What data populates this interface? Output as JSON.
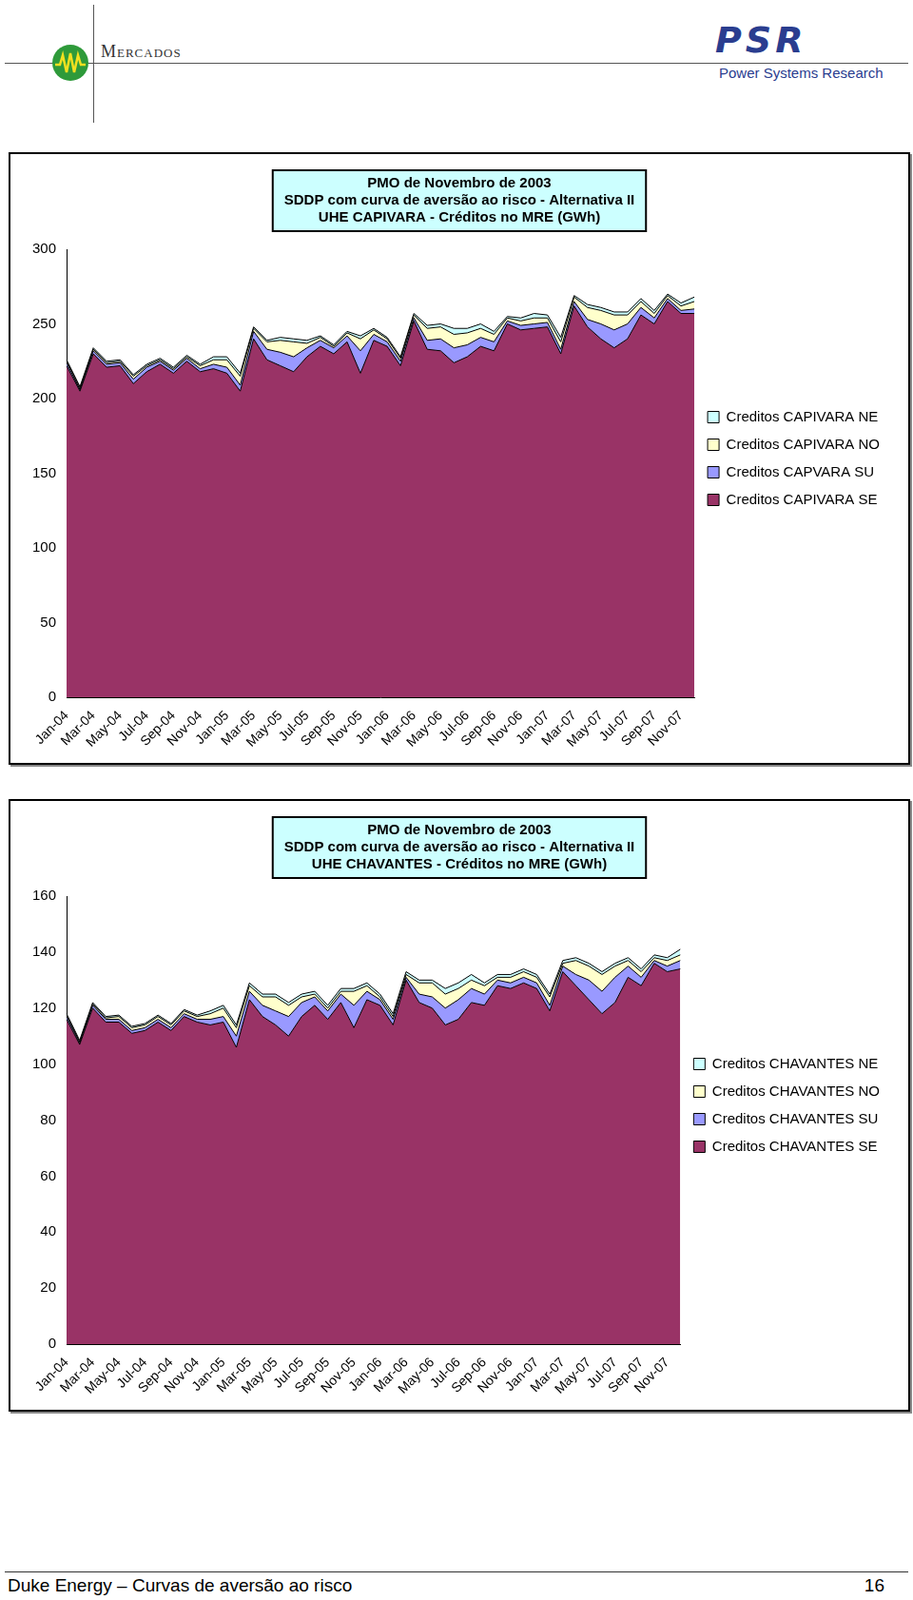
{
  "header": {
    "left": "Mercados",
    "logo": "PSR",
    "right": "Power Systems Research"
  },
  "footer": {
    "left": "Duke Energy – Curvas de aversão ao risco",
    "page": "16"
  },
  "chart_data": [
    {
      "type": "area",
      "stacked": true,
      "grid": false,
      "legend": "right",
      "title": [
        "PMO de Novembro de 2003",
        "SDDP com curva de aversão ao risco - Alternativa II",
        "UHE CAPIVARA - Créditos no MRE (GWh)"
      ],
      "categories": [
        "Jan-04",
        null,
        "Mar-04",
        null,
        "May-04",
        null,
        "Jul-04",
        null,
        "Sep-04",
        null,
        "Nov-04",
        null,
        "Jan-05",
        null,
        "Mar-05",
        null,
        "May-05",
        null,
        "Jul-05",
        null,
        "Sep-05",
        null,
        "Nov-05",
        null,
        "Jan-06",
        null,
        "Mar-06",
        null,
        "May-06",
        null,
        "Jul-06",
        null,
        "Sep-06",
        null,
        "Nov-06",
        null,
        "Jan-07",
        null,
        "Mar-07",
        null,
        "May-07",
        null,
        "Jul-07",
        null,
        "Sep-07",
        null,
        "Nov-07",
        null
      ],
      "series": [
        {
          "name": "Creditos CAPIVARA SE",
          "color": "#993366",
          "values": [
            222,
            205,
            230,
            221,
            222,
            210,
            218,
            223,
            217,
            225,
            218,
            220,
            217,
            205,
            240,
            226,
            222,
            218,
            228,
            235,
            230,
            238,
            217,
            239,
            235,
            222,
            252,
            233,
            232,
            224,
            228,
            235,
            232,
            250,
            246,
            247,
            248,
            230,
            262,
            248,
            240,
            234,
            240,
            256,
            250,
            265,
            257,
            257
          ]
        },
        {
          "name": "Creditos CAPVARA SU",
          "color": "#9999FF",
          "values": [
            2,
            1,
            2,
            2,
            2,
            3,
            3,
            2,
            2,
            2,
            2,
            3,
            4,
            4,
            5,
            7,
            9,
            10,
            6,
            4,
            4,
            4,
            15,
            4,
            3,
            3,
            2,
            6,
            8,
            10,
            8,
            6,
            6,
            2,
            3,
            3,
            3,
            3,
            3,
            5,
            10,
            12,
            10,
            5,
            4,
            2,
            2,
            3
          ]
        },
        {
          "name": "Creditos CAPIVARA NO",
          "color": "#FFFFCC",
          "values": [
            1,
            1,
            1,
            1,
            1,
            2,
            1,
            1,
            1,
            1,
            2,
            3,
            5,
            6,
            2,
            5,
            8,
            10,
            3,
            2,
            1,
            2,
            8,
            3,
            2,
            2,
            2,
            8,
            8,
            9,
            8,
            6,
            5,
            2,
            3,
            4,
            3,
            5,
            3,
            8,
            9,
            10,
            6,
            4,
            3,
            2,
            3,
            5
          ]
        },
        {
          "name": "Creditos CAPIVARA NE",
          "color": "#CCFFFF",
          "values": [
            1,
            1,
            1,
            1,
            1,
            1,
            1,
            1,
            1,
            1,
            1,
            2,
            2,
            2,
            1,
            1,
            2,
            2,
            2,
            1,
            1,
            1,
            2,
            1,
            1,
            1,
            1,
            2,
            2,
            4,
            3,
            3,
            2,
            1,
            2,
            3,
            2,
            3,
            1,
            2,
            2,
            2,
            2,
            2,
            2,
            1,
            2,
            3
          ]
        }
      ],
      "ylim": [
        0,
        300
      ],
      "yticks": [
        0,
        50,
        100,
        150,
        200,
        250,
        300
      ]
    },
    {
      "type": "area",
      "stacked": true,
      "grid": false,
      "legend": "right",
      "title": [
        "PMO de Novembro de 2003",
        "SDDP com curva de aversão ao risco - Alternativa II",
        "UHE CHAVANTES - Créditos no MRE (GWh)"
      ],
      "categories": [
        "Jan-04",
        null,
        "Mar-04",
        null,
        "May-04",
        null,
        "Jul-04",
        null,
        "Sep-04",
        null,
        "Nov-04",
        null,
        "Jan-05",
        null,
        "Mar-05",
        null,
        "May-05",
        null,
        "Jul-05",
        null,
        "Sep-05",
        null,
        "Nov-05",
        null,
        "Jan-06",
        null,
        "Mar-06",
        null,
        "May-06",
        null,
        "Jul-06",
        null,
        "Sep-06",
        null,
        "Nov-06",
        null,
        "Jan-07",
        null,
        "Mar-07",
        null,
        "May-07",
        null,
        "Jul-07",
        null,
        "Sep-07",
        null,
        "Nov-07",
        null
      ],
      "series": [
        {
          "name": "Creditos CHAVANTES SE",
          "color": "#993366",
          "values": [
            116,
            107,
            120,
            115,
            115,
            111,
            112,
            115,
            112,
            117,
            115,
            114,
            115,
            106,
            123,
            117,
            114,
            110,
            117,
            121,
            116,
            122,
            113,
            123,
            121,
            114,
            130,
            122,
            120,
            114,
            116,
            122,
            121,
            128,
            127,
            129,
            127,
            119,
            133,
            128,
            123,
            118,
            122,
            131,
            128,
            136,
            133,
            134
          ]
        },
        {
          "name": "Creditos CHAVANTES SU",
          "color": "#9999FF",
          "values": [
            1,
            0.5,
            1,
            1,
            1,
            1,
            1,
            1,
            1,
            1,
            1,
            2,
            2,
            4,
            3,
            4,
            5,
            7,
            5,
            3,
            3,
            3,
            8,
            3,
            2,
            2,
            1,
            3,
            4,
            6,
            7,
            5,
            4,
            2,
            2,
            2,
            2,
            2,
            2,
            4,
            7,
            8,
            9,
            4,
            3,
            1,
            2,
            3
          ]
        },
        {
          "name": "Creditos CHAVANTES NO",
          "color": "#FFFFCC",
          "values": [
            0.5,
            0.5,
            0.5,
            0.5,
            1,
            1,
            1,
            1,
            1,
            1,
            1,
            2,
            3,
            3,
            2,
            3,
            5,
            4,
            2,
            1,
            1,
            1,
            5,
            2,
            1,
            1,
            1,
            4,
            5,
            5,
            4,
            3,
            3,
            1,
            2,
            2,
            2,
            3,
            1,
            5,
            5,
            6,
            4,
            2,
            2,
            1,
            2,
            2
          ]
        },
        {
          "name": "Creditos CHAVANTES NE",
          "color": "#CCFFFF",
          "values": [
            0.5,
            0.5,
            0.5,
            0.5,
            0.5,
            0.5,
            0.5,
            0.5,
            0.5,
            0.5,
            0.5,
            1,
            1,
            1,
            1,
            1,
            1,
            1,
            1,
            1,
            1,
            1,
            1,
            1,
            1,
            1,
            1,
            1,
            1,
            2,
            2,
            2,
            1,
            1,
            1,
            1,
            1,
            1,
            1,
            1,
            1,
            1,
            1,
            1,
            1,
            1,
            1,
            2
          ]
        }
      ],
      "ylim": [
        0,
        160
      ],
      "yticks": [
        0,
        20,
        40,
        60,
        80,
        100,
        120,
        140,
        160
      ]
    }
  ]
}
